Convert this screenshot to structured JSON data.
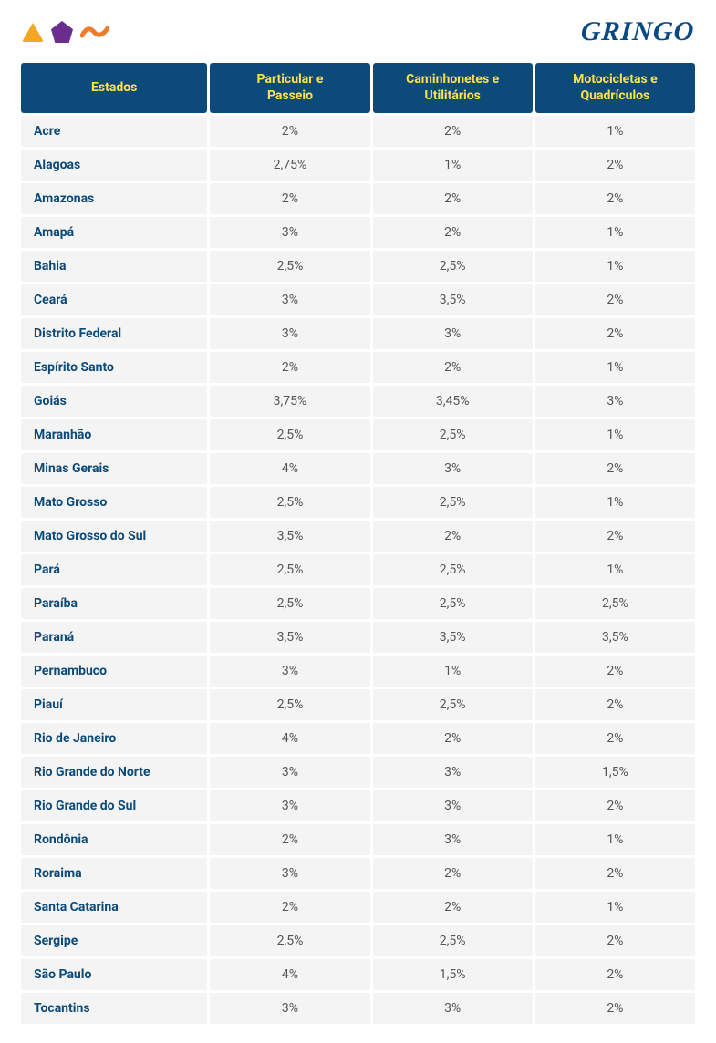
{
  "brand": "GRINGO",
  "icon_colors": {
    "triangle": "#f5a623",
    "pentagon": "#6b2e8e",
    "squiggle": "#f07b2a"
  },
  "table": {
    "header_bg": "#0c4a7a",
    "header_fg": "#ffe24a",
    "row_bg": "#f4f4f4",
    "state_fg": "#0c4a7a",
    "value_fg": "#555555",
    "columns": [
      "Estados",
      "Particular e Passeio",
      "Caminhonetes e Utilitários",
      "Motocicletas e Quadrículos"
    ],
    "rows": [
      [
        "Acre",
        "2%",
        "2%",
        "1%"
      ],
      [
        "Alagoas",
        "2,75%",
        "1%",
        "2%"
      ],
      [
        "Amazonas",
        "2%",
        "2%",
        "2%"
      ],
      [
        "Amapá",
        "3%",
        "2%",
        "1%"
      ],
      [
        "Bahia",
        "2,5%",
        "2,5%",
        "1%"
      ],
      [
        "Ceará",
        "3%",
        "3,5%",
        "2%"
      ],
      [
        "Distrito Federal",
        "3%",
        "3%",
        "2%"
      ],
      [
        "Espírito Santo",
        "2%",
        "2%",
        "1%"
      ],
      [
        "Goiás",
        "3,75%",
        "3,45%",
        "3%"
      ],
      [
        "Maranhão",
        "2,5%",
        "2,5%",
        "1%"
      ],
      [
        "Minas Gerais",
        "4%",
        "3%",
        "2%"
      ],
      [
        "Mato Grosso",
        "2,5%",
        "2,5%",
        "1%"
      ],
      [
        "Mato Grosso do Sul",
        "3,5%",
        "2%",
        "2%"
      ],
      [
        "Pará",
        "2,5%",
        "2,5%",
        "1%"
      ],
      [
        "Paraíba",
        "2,5%",
        "2,5%",
        "2,5%"
      ],
      [
        "Paraná",
        "3,5%",
        "3,5%",
        "3,5%"
      ],
      [
        "Pernambuco",
        "3%",
        "1%",
        "2%"
      ],
      [
        "Piauí",
        "2,5%",
        "2,5%",
        "2%"
      ],
      [
        "Rio de Janeiro",
        "4%",
        "2%",
        "2%"
      ],
      [
        "Rio Grande do Norte",
        "3%",
        "3%",
        "1,5%"
      ],
      [
        "Rio Grande do Sul",
        "3%",
        "3%",
        "2%"
      ],
      [
        "Rondônia",
        "2%",
        "3%",
        "1%"
      ],
      [
        "Roraima",
        "3%",
        "2%",
        "2%"
      ],
      [
        "Santa Catarina",
        "2%",
        "2%",
        "1%"
      ],
      [
        "Sergipe",
        "2,5%",
        "2,5%",
        "2%"
      ],
      [
        "São Paulo",
        "4%",
        "1,5%",
        "2%"
      ],
      [
        "Tocantins",
        "3%",
        "3%",
        "2%"
      ]
    ]
  }
}
